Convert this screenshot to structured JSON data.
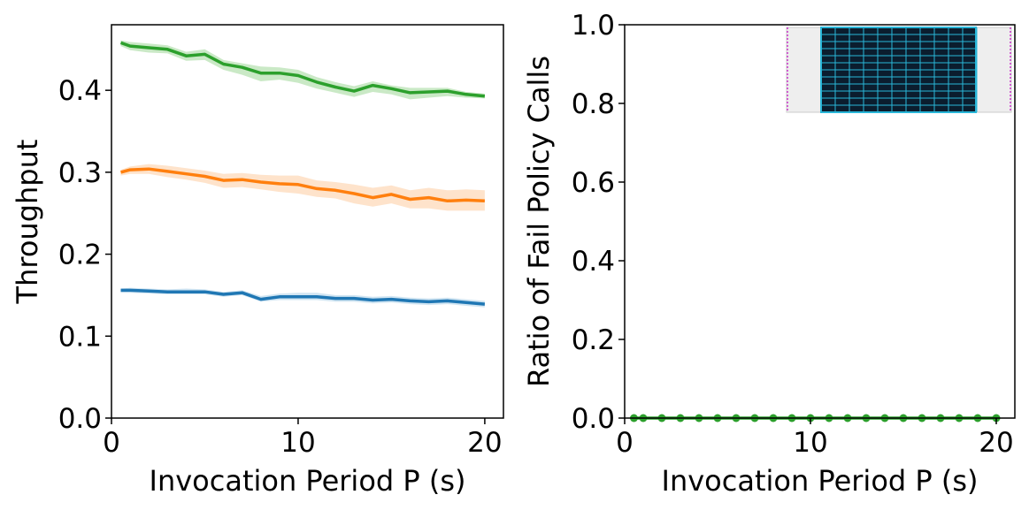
{
  "chart_data": [
    {
      "type": "line",
      "xlabel": "Invocation Period P (s)",
      "ylabel": "Throughput",
      "xlim": [
        0,
        21
      ],
      "ylim": [
        0,
        0.48
      ],
      "xticks": [
        "0",
        "10",
        "20"
      ],
      "xtick_values": [
        0,
        10,
        20
      ],
      "yticks": [
        "0.0",
        "0.1",
        "0.2",
        "0.3",
        "0.4"
      ],
      "ytick_values": [
        0.0,
        0.1,
        0.2,
        0.3,
        0.4
      ],
      "grid": false,
      "x": [
        0.5,
        1,
        2,
        3,
        4,
        5,
        6,
        7,
        8,
        9,
        10,
        11,
        12,
        13,
        14,
        15,
        16,
        17,
        18,
        19,
        20
      ],
      "series": [
        {
          "color": "#2ca02c",
          "band_color": "#a6dba0",
          "values": [
            0.458,
            0.454,
            0.452,
            0.45,
            0.442,
            0.444,
            0.432,
            0.428,
            0.421,
            0.421,
            0.418,
            0.41,
            0.404,
            0.399,
            0.406,
            0.402,
            0.397,
            0.398,
            0.399,
            0.395,
            0.393
          ],
          "lower": [
            0.454,
            0.449,
            0.446,
            0.445,
            0.436,
            0.437,
            0.425,
            0.419,
            0.411,
            0.413,
            0.409,
            0.402,
            0.397,
            0.392,
            0.398,
            0.395,
            0.389,
            0.391,
            0.393,
            0.391,
            0.39
          ],
          "upper": [
            0.461,
            0.459,
            0.457,
            0.455,
            0.447,
            0.45,
            0.437,
            0.433,
            0.429,
            0.428,
            0.425,
            0.416,
            0.41,
            0.405,
            0.411,
            0.406,
            0.403,
            0.403,
            0.403,
            0.398,
            0.396
          ]
        },
        {
          "color": "#ff7f0e",
          "band_color": "#fdd0a8",
          "values": [
            0.3,
            0.303,
            0.304,
            0.301,
            0.298,
            0.295,
            0.29,
            0.291,
            0.288,
            0.286,
            0.285,
            0.28,
            0.278,
            0.274,
            0.269,
            0.273,
            0.267,
            0.269,
            0.265,
            0.266,
            0.265
          ],
          "lower": [
            0.296,
            0.298,
            0.298,
            0.294,
            0.291,
            0.287,
            0.281,
            0.282,
            0.279,
            0.276,
            0.274,
            0.27,
            0.268,
            0.262,
            0.258,
            0.262,
            0.256,
            0.256,
            0.253,
            0.253,
            0.253
          ],
          "upper": [
            0.303,
            0.307,
            0.31,
            0.308,
            0.305,
            0.302,
            0.298,
            0.299,
            0.297,
            0.296,
            0.296,
            0.29,
            0.288,
            0.285,
            0.281,
            0.284,
            0.278,
            0.281,
            0.278,
            0.279,
            0.278
          ]
        },
        {
          "color": "#1f77b4",
          "band_color": "#b3d3ea",
          "values": [
            0.156,
            0.156,
            0.155,
            0.154,
            0.154,
            0.154,
            0.151,
            0.153,
            0.145,
            0.148,
            0.148,
            0.148,
            0.146,
            0.146,
            0.144,
            0.145,
            0.143,
            0.142,
            0.143,
            0.141,
            0.139
          ],
          "lower": [
            0.153,
            0.153,
            0.152,
            0.151,
            0.151,
            0.151,
            0.148,
            0.15,
            0.142,
            0.144,
            0.144,
            0.144,
            0.142,
            0.142,
            0.14,
            0.141,
            0.139,
            0.138,
            0.139,
            0.137,
            0.135
          ],
          "upper": [
            0.158,
            0.159,
            0.158,
            0.157,
            0.158,
            0.157,
            0.154,
            0.156,
            0.149,
            0.152,
            0.153,
            0.153,
            0.15,
            0.15,
            0.148,
            0.149,
            0.147,
            0.146,
            0.147,
            0.145,
            0.143
          ]
        }
      ]
    },
    {
      "type": "line",
      "xlabel": "Invocation Period P (s)",
      "ylabel": "Ratio of Fail Policy Calls",
      "xlim": [
        0,
        21
      ],
      "ylim": [
        0,
        1.0
      ],
      "xticks": [
        "0",
        "10",
        "20"
      ],
      "xtick_values": [
        0,
        10,
        20
      ],
      "yticks": [
        "0.0",
        "0.2",
        "0.4",
        "0.6",
        "0.8",
        "1.0"
      ],
      "ytick_values": [
        0.0,
        0.2,
        0.4,
        0.6,
        0.8,
        1.0
      ],
      "grid": false,
      "legend_placement": "top-right",
      "x": [
        0.5,
        1,
        2,
        3,
        4,
        5,
        6,
        7,
        8,
        9,
        10,
        11,
        12,
        13,
        14,
        15,
        16,
        17,
        18,
        19,
        20
      ],
      "series": [
        {
          "color": "#2ca02c",
          "marker": "circle",
          "values": [
            0,
            0,
            0,
            0,
            0,
            0,
            0,
            0,
            0,
            0,
            0,
            0,
            0,
            0,
            0,
            0,
            0,
            0,
            0,
            0,
            0
          ]
        }
      ]
    }
  ]
}
